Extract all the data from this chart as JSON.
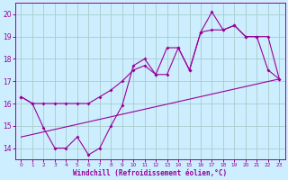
{
  "xlabel": "Windchill (Refroidissement éolien,°C)",
  "bg_color": "#cceeff",
  "line_color": "#990099",
  "grid_color": "#aacccc",
  "xlim": [
    -0.5,
    23.5
  ],
  "ylim": [
    13.5,
    20.5
  ],
  "xticks": [
    0,
    1,
    2,
    3,
    4,
    5,
    6,
    7,
    8,
    9,
    10,
    11,
    12,
    13,
    14,
    15,
    16,
    17,
    18,
    19,
    20,
    21,
    22,
    23
  ],
  "yticks": [
    14,
    15,
    16,
    17,
    18,
    19,
    20
  ],
  "series1_x": [
    0,
    1,
    2,
    3,
    4,
    5,
    6,
    7,
    8,
    9,
    10,
    11,
    12,
    13,
    14,
    15,
    16,
    17,
    18,
    19,
    20,
    21,
    22,
    23
  ],
  "series1_y": [
    16.3,
    16.0,
    14.9,
    14.0,
    14.0,
    14.5,
    13.7,
    14.0,
    15.0,
    15.9,
    17.7,
    18.0,
    17.3,
    18.5,
    18.5,
    17.5,
    19.2,
    20.1,
    19.3,
    19.5,
    19.0,
    19.0,
    17.5,
    17.1
  ],
  "series2_x": [
    0,
    1,
    2,
    3,
    4,
    5,
    6,
    7,
    8,
    9,
    10,
    11,
    12,
    13,
    14,
    15,
    16,
    17,
    18,
    19,
    20,
    21,
    22,
    23
  ],
  "series2_y": [
    16.3,
    16.0,
    16.0,
    16.0,
    16.0,
    16.0,
    16.0,
    16.3,
    16.6,
    17.0,
    17.5,
    17.7,
    17.3,
    17.3,
    18.5,
    17.5,
    19.2,
    19.3,
    19.3,
    19.5,
    19.0,
    19.0,
    19.0,
    17.1
  ],
  "trend_x": [
    0,
    23
  ],
  "trend_y": [
    14.5,
    17.1
  ]
}
